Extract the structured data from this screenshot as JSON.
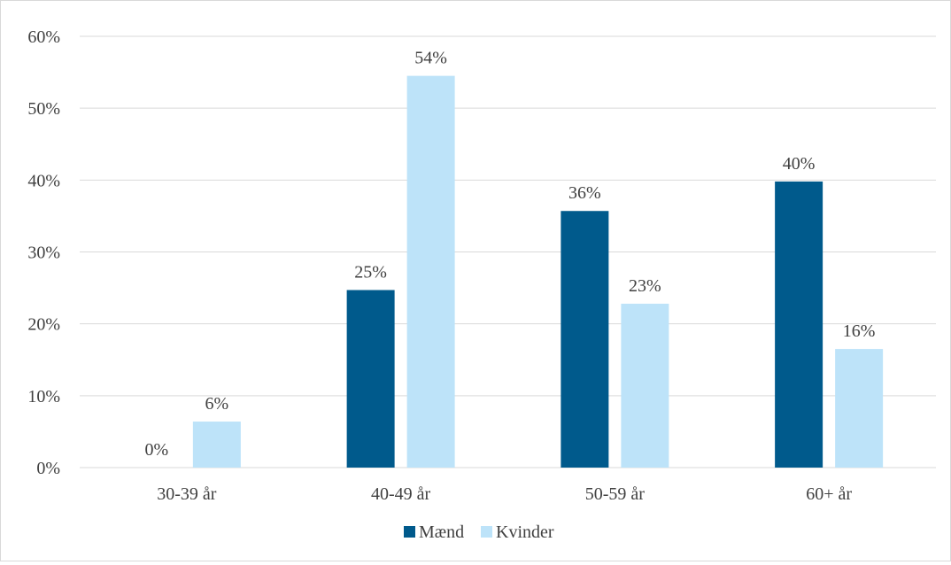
{
  "chart_data": {
    "type": "bar",
    "categories": [
      "30-39 år",
      "40-49 år",
      "50-59 år",
      "60+ år"
    ],
    "series": [
      {
        "name": "Mænd",
        "color": "#005a8c",
        "values": [
          0,
          24.7,
          35.7,
          39.8
        ],
        "labels": [
          "0%",
          "25%",
          "36%",
          "40%"
        ]
      },
      {
        "name": "Kvinder",
        "color": "#bde3f9",
        "values": [
          6.4,
          54.5,
          22.8,
          16.5
        ],
        "labels": [
          "6%",
          "54%",
          "23%",
          "16%"
        ]
      }
    ],
    "ylim": [
      0,
      60
    ],
    "yticks": [
      0,
      10,
      20,
      30,
      40,
      50,
      60
    ],
    "ytick_labels": [
      "0%",
      "10%",
      "20%",
      "30%",
      "40%",
      "50%",
      "60%"
    ],
    "grid": true,
    "legend": "bottom-center",
    "gridline_color": "#d9d9d9"
  }
}
